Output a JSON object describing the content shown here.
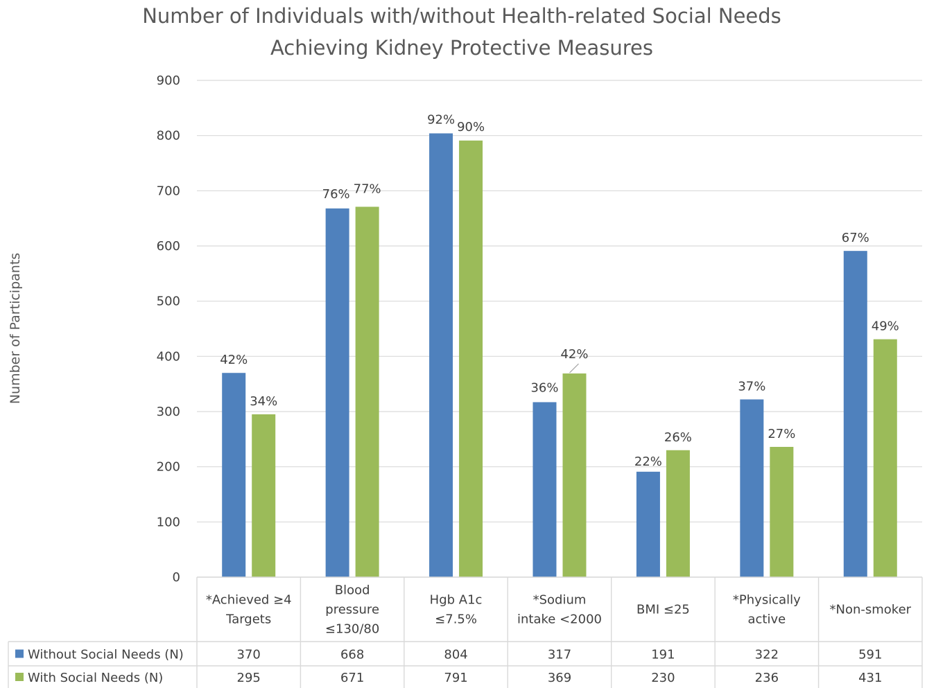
{
  "chart_data": {
    "type": "bar",
    "title_lines": [
      "Number of Individuals with/without Health-related Social Needs",
      "Achieving Kidney Protective Measures"
    ],
    "ylabel": "Number of Participants",
    "xlabel": "",
    "ylim": [
      0,
      900
    ],
    "yticks": [
      0,
      100,
      200,
      300,
      400,
      500,
      600,
      700,
      800,
      900
    ],
    "grid": true,
    "legend": "data-table",
    "categories": [
      [
        "*Achieved ≥4",
        "Targets"
      ],
      [
        "Blood",
        "pressure",
        "≤130/80"
      ],
      [
        "Hgb A1c",
        "≤7.5%"
      ],
      [
        "*Sodium",
        "intake <2000"
      ],
      [
        "BMI ≤25"
      ],
      [
        "*Physically",
        "active"
      ],
      [
        "*Non-smoker"
      ]
    ],
    "series": [
      {
        "name": "Without Social Needs (N)",
        "color": "#4f81bd",
        "values": [
          370,
          668,
          804,
          317,
          191,
          322,
          591
        ],
        "percent_labels": [
          "42%",
          "76%",
          "92%",
          "36%",
          "22%",
          "37%",
          "67%"
        ]
      },
      {
        "name": "With Social Needs (N)",
        "color": "#9bbb59",
        "values": [
          295,
          671,
          791,
          369,
          230,
          236,
          431
        ],
        "percent_labels": [
          "34%",
          "77%",
          "90%",
          "42%",
          "26%",
          "27%",
          "49%"
        ]
      }
    ]
  }
}
